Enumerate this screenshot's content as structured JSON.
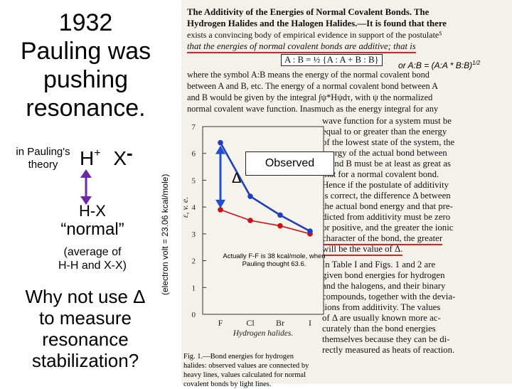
{
  "slide": {
    "title_lines": [
      "1932",
      "Pauling was",
      "pushing",
      "resonance."
    ],
    "theory_lines": [
      "in Pauling's",
      "theory"
    ],
    "ion_h": "H",
    "ion_h_charge": "+",
    "ion_x": "X",
    "ion_x_charge": "-",
    "hx": "H-X",
    "normal": "“normal”",
    "average_lines": [
      "(average of",
      "H-H and X-X)"
    ],
    "question_lines": [
      "Why not use Δ",
      "to measure",
      "resonance",
      "stabilization?"
    ],
    "axis_note": "(electron volt = 23.06 kcal/mole)",
    "or_formula": "or A:B = (A:A * B:B)",
    "or_formula_exp": "1/2",
    "observed_label": "Observed",
    "delta_label": "Δ",
    "ff_note": "Actually F-F is 38 kcal/mole, when Pauling thought 63.6."
  },
  "paper": {
    "lines": [
      "The Additivity of the Energies of Normal Covalent Bonds.  The",
      "Hydrogen Halides and the Halogen Halides.—It is found that there",
      "exists a convincing body of empirical evidence in support of the postulate⁵",
      "that the energies of normal covalent bonds are additive;  that is",
      "A : B = ½ {A : A + B : B}",
      "where the symbol A:B means the energy of the normal covalent bond",
      "between A and B, etc.   The energy of a normal covalent bond between A",
      "and B would be given by the integral ∫ψ*Hψdτ, with ψ the normalized",
      "normal covalent wave function.   Inasmuch as the energy integral for any"
    ],
    "right_lines": [
      "wave function for a system must be",
      "equal to or greater than the energy",
      "of the lowest state of the system, the",
      "energy of the actual bond between",
      "A and B must be at least as great as",
      "that for a normal covalent bond.",
      "Hence if the postulate of additivity",
      "is correct, the difference Δ between",
      "the actual bond energy and that pre-",
      "dicted from additivity must be zero",
      "or positive, and the greater the ionic",
      "character of the bond, the greater",
      "will be the value of  Δ.",
      "   In Table I and Figs. 1 and 2 are",
      "given bond energies for hydrogen",
      "and the halogens, and their binary",
      "compounds, together with the devia-",
      "tions from additivity.   The values",
      "of  Δ are usually known more ac-",
      "curately than the bond energies",
      "themselves because they can be di-",
      "rectly measured as heats of reaction."
    ],
    "caption_lines": [
      "Fig. 1.—Bond energies for hydrogen",
      "halides: observed values are connected by",
      "heavy lines, values calculated for normal",
      "covalent bonds by light lines."
    ]
  },
  "chart_data": {
    "type": "line",
    "categories": [
      "F",
      "Cl",
      "Br",
      "I"
    ],
    "xlabel": "Hydrogen halides.",
    "ylabel": "ε, v. e.",
    "ylim": [
      0,
      7
    ],
    "yticks": [
      0,
      1,
      2,
      3,
      4,
      5,
      6,
      7
    ],
    "series": [
      {
        "name": "Observed",
        "values": [
          6.4,
          4.4,
          3.7,
          3.1
        ]
      },
      {
        "name": "",
        "values": [
          3.9,
          3.5,
          3.3,
          3.0
        ]
      }
    ],
    "colors": {
      "observed": "#1f3fbf",
      "normal": "#cc1111",
      "arrow": "#1f4fd6"
    }
  }
}
